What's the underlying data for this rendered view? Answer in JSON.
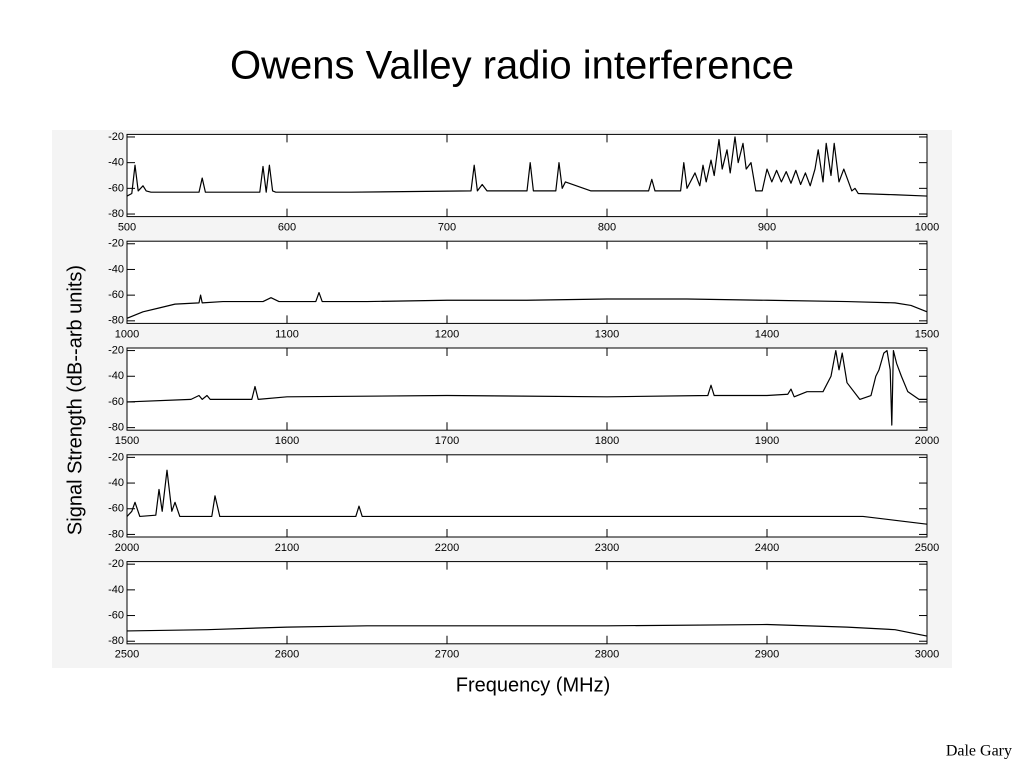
{
  "title": "Owens Valley radio interference",
  "ylabel": "Signal Strength (dB--arb units)",
  "xlabel": "Frequency (MHz)",
  "author": "Dale Gary",
  "chart_data": [
    {
      "type": "line",
      "color": "#000000",
      "x": [
        500,
        503,
        505,
        507,
        510,
        512,
        515,
        545,
        547,
        549,
        583,
        585,
        587,
        589,
        591,
        593,
        640,
        715,
        717,
        719,
        722,
        725,
        750,
        752,
        754,
        768,
        770,
        772,
        774,
        790,
        826,
        828,
        830,
        846,
        848,
        850,
        855,
        858,
        860,
        862,
        865,
        867,
        870,
        872,
        875,
        877,
        880,
        882,
        885,
        887,
        890,
        893,
        897,
        900,
        903,
        906,
        909,
        912,
        915,
        918,
        921,
        924,
        927,
        930,
        932,
        935,
        937,
        940,
        942,
        945,
        948,
        953,
        955,
        957,
        980,
        1000
      ],
      "values": [
        -66,
        -64,
        -42,
        -62,
        -58,
        -62,
        -63,
        -63,
        -52,
        -63,
        -63,
        -43,
        -63,
        -42,
        -62,
        -63,
        -63,
        -62,
        -42,
        -62,
        -57,
        -62,
        -62,
        -40,
        -62,
        -62,
        -40,
        -60,
        -55,
        -62,
        -62,
        -53,
        -62,
        -62,
        -40,
        -60,
        -48,
        -58,
        -42,
        -55,
        -38,
        -50,
        -22,
        -45,
        -30,
        -48,
        -20,
        -40,
        -25,
        -45,
        -40,
        -62,
        -62,
        -45,
        -55,
        -46,
        -55,
        -47,
        -56,
        -46,
        -57,
        -48,
        -58,
        -45,
        -30,
        -55,
        -25,
        -50,
        -25,
        -55,
        -45,
        -62,
        -60,
        -64,
        -65,
        -66
      ],
      "xlim": [
        500,
        1000
      ],
      "xticks": [
        500,
        600,
        700,
        800,
        900,
        1000
      ],
      "ylim": [
        -82,
        -18
      ],
      "yticks": [
        -20,
        -40,
        -60,
        -80
      ]
    },
    {
      "type": "line",
      "color": "#000000",
      "x": [
        1000,
        1010,
        1020,
        1030,
        1045,
        1046,
        1047,
        1060,
        1085,
        1090,
        1095,
        1118,
        1120,
        1122,
        1150,
        1200,
        1250,
        1300,
        1350,
        1400,
        1450,
        1480,
        1490,
        1500
      ],
      "values": [
        -78,
        -73,
        -70,
        -67,
        -66,
        -60,
        -66,
        -65,
        -65,
        -62,
        -65,
        -65,
        -58,
        -65,
        -65,
        -64,
        -64,
        -63,
        -63,
        -64,
        -65,
        -66,
        -68,
        -73
      ],
      "xlim": [
        1000,
        1500
      ],
      "xticks": [
        1000,
        1100,
        1200,
        1300,
        1400,
        1500
      ],
      "ylim": [
        -82,
        -18
      ],
      "yticks": [
        -20,
        -40,
        -60,
        -80
      ]
    },
    {
      "type": "line",
      "color": "#000000",
      "x": [
        1500,
        1540,
        1545,
        1547,
        1550,
        1552,
        1578,
        1580,
        1582,
        1600,
        1700,
        1800,
        1863,
        1865,
        1867,
        1900,
        1913,
        1915,
        1917,
        1925,
        1935,
        1940,
        1943,
        1945,
        1947,
        1950,
        1958,
        1965,
        1968,
        1970,
        1973,
        1975,
        1977,
        1978,
        1979,
        1981,
        1984,
        1988,
        1995,
        2000
      ],
      "values": [
        -60,
        -58,
        -55,
        -58,
        -55,
        -58,
        -58,
        -48,
        -58,
        -56,
        -55,
        -56,
        -55,
        -47,
        -55,
        -55,
        -54,
        -50,
        -56,
        -52,
        -52,
        -40,
        -20,
        -35,
        -22,
        -45,
        -58,
        -55,
        -40,
        -35,
        -22,
        -20,
        -35,
        -78,
        -20,
        -30,
        -40,
        -52,
        -58,
        -58
      ],
      "xlim": [
        1500,
        2000
      ],
      "xticks": [
        1500,
        1600,
        1700,
        1800,
        1900,
        2000
      ],
      "ylim": [
        -82,
        -18
      ],
      "yticks": [
        -20,
        -40,
        -60,
        -80
      ]
    },
    {
      "type": "line",
      "color": "#000000",
      "x": [
        2000,
        2003,
        2005,
        2008,
        2018,
        2020,
        2022,
        2025,
        2028,
        2030,
        2033,
        2053,
        2055,
        2058,
        2143,
        2145,
        2147,
        2200,
        2300,
        2400,
        2460,
        2480,
        2500
      ],
      "values": [
        -66,
        -62,
        -55,
        -66,
        -65,
        -45,
        -62,
        -30,
        -62,
        -55,
        -66,
        -66,
        -50,
        -66,
        -66,
        -58,
        -66,
        -66,
        -66,
        -66,
        -66,
        -69,
        -72
      ],
      "xlim": [
        2000,
        2500
      ],
      "xticks": [
        2000,
        2100,
        2200,
        2300,
        2400,
        2500
      ],
      "ylim": [
        -82,
        -18
      ],
      "yticks": [
        -20,
        -40,
        -60,
        -80
      ]
    },
    {
      "type": "line",
      "color": "#000000",
      "x": [
        2500,
        2550,
        2600,
        2650,
        2700,
        2800,
        2900,
        2950,
        2980,
        3000
      ],
      "values": [
        -72,
        -71,
        -69,
        -68,
        -68,
        -68,
        -67,
        -69,
        -71,
        -76
      ],
      "xlim": [
        2500,
        3000
      ],
      "xticks": [
        2500,
        2600,
        2700,
        2800,
        2900,
        3000
      ],
      "ylim": [
        -82,
        -18
      ],
      "yticks": [
        -20,
        -40,
        -60,
        -80
      ]
    }
  ]
}
